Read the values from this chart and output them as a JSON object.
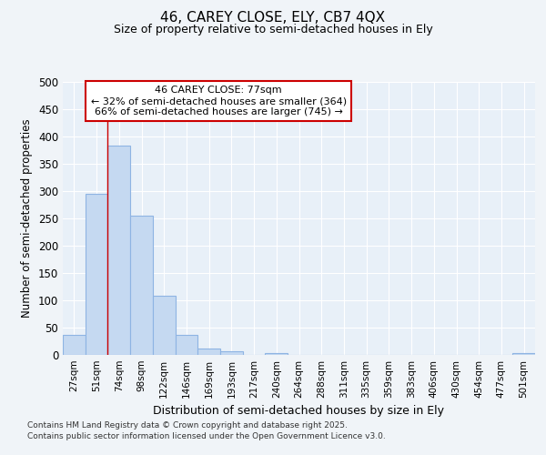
{
  "title1": "46, CAREY CLOSE, ELY, CB7 4QX",
  "title2": "Size of property relative to semi-detached houses in Ely",
  "xlabel": "Distribution of semi-detached houses by size in Ely",
  "ylabel": "Number of semi-detached properties",
  "categories": [
    "27sqm",
    "51sqm",
    "74sqm",
    "98sqm",
    "122sqm",
    "146sqm",
    "169sqm",
    "193sqm",
    "217sqm",
    "240sqm",
    "264sqm",
    "288sqm",
    "311sqm",
    "335sqm",
    "359sqm",
    "383sqm",
    "406sqm",
    "430sqm",
    "454sqm",
    "477sqm",
    "501sqm"
  ],
  "values": [
    36,
    295,
    383,
    255,
    108,
    37,
    11,
    6,
    0,
    4,
    0,
    0,
    0,
    0,
    0,
    0,
    0,
    0,
    0,
    0,
    4
  ],
  "bar_color": "#c5d9f1",
  "bar_edge_color": "#8eb4e3",
  "vline_color": "#cc0000",
  "annotation_title": "46 CAREY CLOSE: 77sqm",
  "annotation_line2": "← 32% of semi-detached houses are smaller (364)",
  "annotation_line3": "66% of semi-detached houses are larger (745) →",
  "annotation_box_color": "white",
  "annotation_box_edge": "#cc0000",
  "ylim": [
    0,
    500
  ],
  "yticks": [
    0,
    50,
    100,
    150,
    200,
    250,
    300,
    350,
    400,
    450,
    500
  ],
  "footnote1": "Contains HM Land Registry data © Crown copyright and database right 2025.",
  "footnote2": "Contains public sector information licensed under the Open Government Licence v3.0.",
  "bg_color": "#f0f4f8",
  "plot_bg_color": "#e8f0f8",
  "grid_color": "#ffffff"
}
